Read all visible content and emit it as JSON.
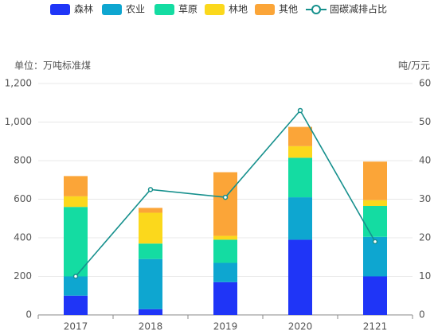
{
  "chart_data": {
    "type": "bar",
    "y_label": "单位：万吨标准煤",
    "y2_label": "吨/万元",
    "categories": [
      "2017",
      "2018",
      "2019",
      "2020",
      "2121"
    ],
    "series": [
      {
        "name": "森林",
        "type": "bar",
        "color": "#1f35f7",
        "values": [
          100,
          30,
          170,
          390,
          200
        ]
      },
      {
        "name": "农业",
        "type": "bar",
        "color": "#0ea6d0",
        "values": [
          100,
          260,
          100,
          220,
          205
        ]
      },
      {
        "name": "草原",
        "type": "bar",
        "color": "#14dca2",
        "values": [
          360,
          80,
          120,
          205,
          160
        ]
      },
      {
        "name": "林地",
        "type": "bar",
        "color": "#fbd81c",
        "values": [
          55,
          160,
          20,
          60,
          30
        ]
      },
      {
        "name": "其他",
        "type": "bar",
        "color": "#fba538",
        "values": [
          105,
          25,
          330,
          100,
          200
        ]
      },
      {
        "name": "固碳减排占比",
        "type": "line",
        "axis": "y2",
        "color": "#16908d",
        "values": [
          10,
          32.5,
          30.5,
          53,
          19
        ]
      }
    ],
    "stacked": true,
    "ylim": [
      0,
      1200
    ],
    "yticks": [
      0,
      200,
      400,
      600,
      800,
      {
        "value": 1000,
        "label": "1,000"
      },
      {
        "value": 1200,
        "label": "1,200"
      }
    ],
    "y2lim": [
      0,
      60
    ],
    "y2ticks": [
      0,
      10,
      20,
      30,
      40,
      50,
      60
    ],
    "grid": true,
    "legend": "top"
  }
}
